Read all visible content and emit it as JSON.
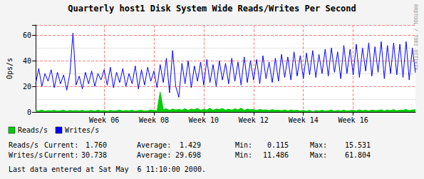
{
  "chart_data": {
    "type": "line",
    "title": "Quarterly host1 Disk System Wide Reads/Writes Per Second",
    "y_label": "Ops/s",
    "watermark": "RRDTOOL / TOBI OETIKER",
    "x": [
      3.25,
      3.375,
      3.5,
      3.625,
      3.75,
      3.875,
      4,
      4.125,
      4.25,
      4.375,
      4.5,
      4.625,
      4.75,
      4.875,
      5,
      5.125,
      5.25,
      5.375,
      5.5,
      5.625,
      5.75,
      5.875,
      6,
      6.125,
      6.25,
      6.375,
      6.5,
      6.625,
      6.75,
      6.875,
      7,
      7.125,
      7.25,
      7.375,
      7.5,
      7.625,
      7.75,
      7.875,
      8,
      8.125,
      8.25,
      8.375,
      8.5,
      8.625,
      8.75,
      8.875,
      9,
      9.125,
      9.25,
      9.375,
      9.5,
      9.625,
      9.75,
      9.875,
      10,
      10.125,
      10.25,
      10.375,
      10.5,
      10.625,
      10.75,
      10.875,
      11,
      11.125,
      11.25,
      11.375,
      11.5,
      11.625,
      11.75,
      11.875,
      12,
      12.125,
      12.25,
      12.375,
      12.5,
      12.625,
      12.75,
      12.875,
      13,
      13.125,
      13.25,
      13.375,
      13.5,
      13.625,
      13.75,
      13.875,
      14,
      14.125,
      14.25,
      14.375,
      14.5,
      14.625,
      14.75,
      14.875,
      15,
      15.125,
      15.25,
      15.375,
      15.5,
      15.625,
      15.75,
      15.875,
      16,
      16.125,
      16.25,
      16.375,
      16.5,
      16.625,
      16.75,
      16.875,
      17,
      17.125,
      17.25,
      17.375,
      17.5,
      17.625,
      17.75,
      17.875,
      18,
      18.125,
      18.25,
      18.375,
      18.5
    ],
    "series": [
      {
        "name": "Reads/s",
        "type": "area",
        "color": "#00cc00",
        "values": [
          1.2,
          0.8,
          1.5,
          0.6,
          1.1,
          0.9,
          1.3,
          0.7,
          1.0,
          1.4,
          0.5,
          1.2,
          0.9,
          1.1,
          0.8,
          1.3,
          0.6,
          1.0,
          1.2,
          0.7,
          1.4,
          0.9,
          1.1,
          0.6,
          1.3,
          0.8,
          1.0,
          1.5,
          0.7,
          1.2,
          0.9,
          1.4,
          0.6,
          1.1,
          1.3,
          0.8,
          1.0,
          1.6,
          1.2,
          0.9,
          15.531,
          1.8,
          2.5,
          1.4,
          2.2,
          1.7,
          2.0,
          1.5,
          2.6,
          1.2,
          2.3,
          1.8,
          2.8,
          1.4,
          2.1,
          1.6,
          2.9,
          1.3,
          2.4,
          1.9,
          2.7,
          1.5,
          2.2,
          1.4,
          2.5,
          1.7,
          3.0,
          1.3,
          2.3,
          1.8,
          1.9,
          1.2,
          2.0,
          1.5,
          1.7,
          1.1,
          1.8,
          1.3,
          1.4,
          1.0,
          1.6,
          0.9,
          1.5,
          1.1,
          1.3,
          0.8,
          1.2,
          0.7,
          1.4,
          0.115,
          1.1,
          0.9,
          1.3,
          0.8,
          1.0,
          1.5,
          0.7,
          1.2,
          0.9,
          1.4,
          0.8,
          1.1,
          1.3,
          0.9,
          1.6,
          1.0,
          1.4,
          0.8,
          1.5,
          1.1,
          1.2,
          1.7,
          0.9,
          1.5,
          1.1,
          1.8,
          1.0,
          1.4,
          1.3,
          1.9,
          1.1,
          1.6,
          1.76
        ]
      },
      {
        "name": "Writes/s",
        "type": "line",
        "color": "#0000ff",
        "values": [
          22,
          34,
          20,
          30,
          24,
          33,
          19,
          31,
          22,
          29,
          17,
          30,
          61.804,
          21,
          28,
          18,
          31,
          22,
          32,
          20,
          30,
          25,
          33,
          21,
          35,
          19,
          31,
          23,
          34,
          20,
          30,
          22,
          36,
          18,
          33,
          21,
          35,
          24,
          32,
          19,
          37,
          23,
          42,
          15,
          48,
          20,
          11.486,
          38,
          22,
          40,
          19,
          36,
          24,
          39,
          21,
          41,
          23,
          37,
          20,
          40,
          25,
          38,
          22,
          42,
          24,
          39,
          21,
          43,
          23,
          40,
          25,
          41,
          22,
          44,
          26,
          39,
          23,
          42,
          24,
          45,
          27,
          43,
          25,
          47,
          28,
          44,
          26,
          46,
          29,
          48,
          27,
          45,
          30,
          49,
          28,
          50,
          31,
          47,
          26,
          52,
          30,
          49,
          29,
          53,
          27,
          50,
          32,
          54,
          28,
          51,
          31,
          55,
          26,
          52,
          30,
          54,
          29,
          53,
          27,
          55,
          25,
          50,
          30.738
        ]
      }
    ],
    "xlim": [
      3.25,
      18.5
    ],
    "xticks": [
      {
        "value": 6,
        "label": "Week 06"
      },
      {
        "value": 8,
        "label": "Week 08"
      },
      {
        "value": 10,
        "label": "Week 10"
      },
      {
        "value": 12,
        "label": "Week 12"
      },
      {
        "value": 14,
        "label": "Week 14"
      },
      {
        "value": 16,
        "label": "Week 16"
      }
    ],
    "ylim": [
      0,
      68
    ],
    "yticks": [
      0,
      20,
      40,
      60
    ],
    "grid": true,
    "stats": {
      "columns": [
        "Current:",
        "Average:",
        "Min:",
        "Max:"
      ],
      "rows": [
        {
          "name": "Reads/s",
          "values": [
            "1.760",
            "1.429",
            "0.115",
            "15.531"
          ]
        },
        {
          "name": "Writes/s",
          "values": [
            "30.738",
            "29.698",
            "11.486",
            "61.804"
          ]
        }
      ]
    },
    "footer": "Last data entered at Sat May  6 11:10:00 2000."
  }
}
